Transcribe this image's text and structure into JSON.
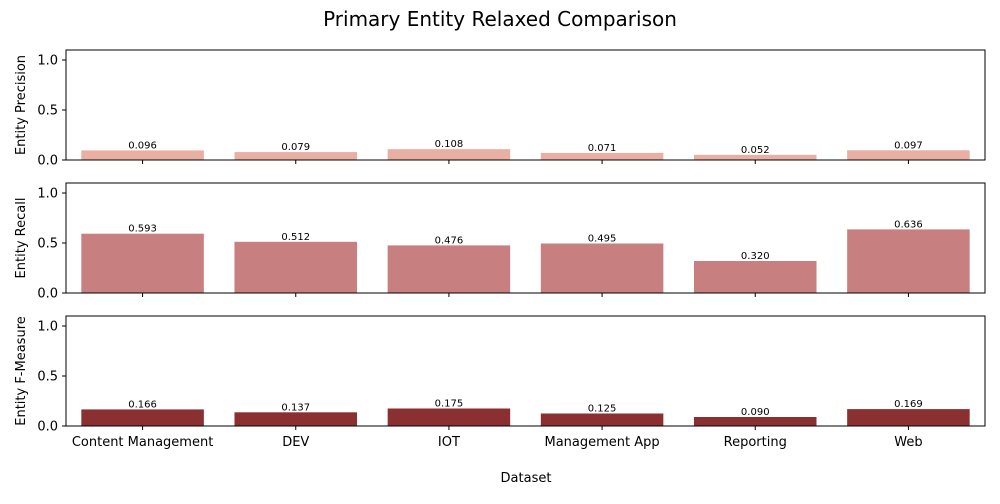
{
  "chart_data": {
    "type": "bar",
    "title": "Primary Entity Relaxed Comparison",
    "xlabel": "Dataset",
    "categories": [
      "Content Management",
      "DEV",
      "IOT",
      "Management App",
      "Reporting",
      "Web"
    ],
    "ylim": [
      0,
      1.1
    ],
    "yticks": [
      0.0,
      0.5,
      1.0
    ],
    "ytick_labels": [
      "0.0",
      "0.5",
      "1.0"
    ],
    "legend": "none",
    "grid": false,
    "panels": [
      {
        "ylabel": "Entity Precision",
        "color": "#e8afa2",
        "values": [
          0.096,
          0.079,
          0.108,
          0.071,
          0.052,
          0.097
        ],
        "value_labels": [
          "0.096",
          "0.079",
          "0.108",
          "0.071",
          "0.052",
          "0.097"
        ]
      },
      {
        "ylabel": "Entity Recall",
        "color": "#c87f7f",
        "values": [
          0.593,
          0.512,
          0.476,
          0.495,
          0.32,
          0.636
        ],
        "value_labels": [
          "0.593",
          "0.512",
          "0.476",
          "0.495",
          "0.320",
          "0.636"
        ]
      },
      {
        "ylabel": "Entity F-Measure",
        "color": "#8b3030",
        "values": [
          0.166,
          0.137,
          0.175,
          0.125,
          0.09,
          0.169
        ],
        "value_labels": [
          "0.166",
          "0.137",
          "0.175",
          "0.125",
          "0.090",
          "0.169"
        ]
      }
    ]
  }
}
